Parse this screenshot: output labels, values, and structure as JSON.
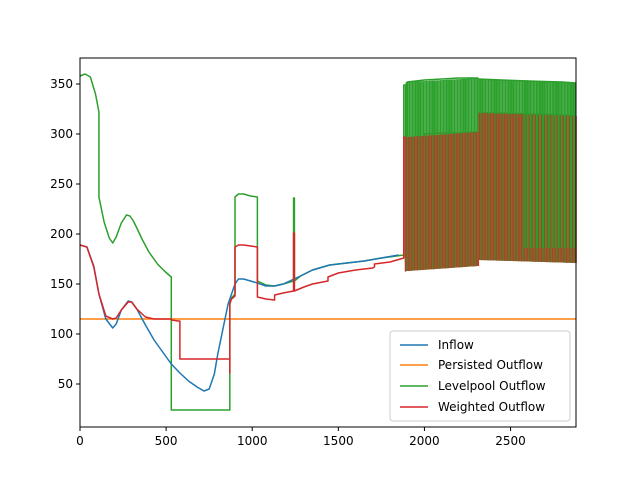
{
  "chart_data": {
    "type": "line",
    "title": "",
    "xlabel": "",
    "ylabel": "",
    "xlim": [
      0,
      2880
    ],
    "ylim": [
      7,
      376
    ],
    "xticks": [
      0,
      500,
      1000,
      1500,
      2000,
      2500
    ],
    "yticks": [
      50,
      100,
      150,
      200,
      250,
      300,
      350
    ],
    "grid": false,
    "legend_position": "lower-right",
    "series": [
      {
        "name": "Inflow",
        "color": "#1f77b4",
        "x": [
          0,
          40,
          80,
          110,
          150,
          190,
          210,
          240,
          280,
          300,
          330,
          380,
          430,
          480,
          530,
          580,
          630,
          680,
          720,
          750,
          780,
          800,
          830,
          860,
          880,
          900,
          920,
          950,
          990,
          1030,
          1080,
          1130,
          1180,
          1230,
          1280,
          1350,
          1450,
          1550,
          1650,
          1750,
          1850
        ],
        "y": [
          189,
          187,
          168,
          140,
          115,
          106,
          110,
          124,
          133,
          132,
          125,
          109,
          94,
          82,
          70,
          61,
          53,
          47,
          43,
          45,
          60,
          80,
          105,
          130,
          140,
          150,
          155,
          155,
          153,
          151,
          148,
          148,
          150,
          154,
          158,
          164,
          169,
          171,
          173,
          176,
          179
        ]
      },
      {
        "name": "Persisted Outflow",
        "color": "#ff7f0e",
        "x": [
          0,
          2880
        ],
        "y": [
          115,
          115
        ]
      },
      {
        "name": "Levelpool Outflow",
        "color": "#2ca02c",
        "x": [
          0,
          30,
          60,
          90,
          110,
          110,
          140,
          170,
          190,
          210,
          240,
          270,
          290,
          310,
          330,
          360,
          400,
          450,
          490,
          530,
          530,
          870,
          870,
          880,
          890,
          900,
          900,
          920,
          950,
          990,
          1030,
          1030,
          1080,
          1130,
          1180,
          1240,
          1240,
          1245,
          1245,
          1280,
          1350,
          1450,
          1550,
          1650,
          1750,
          1880,
          1880,
          1890,
          1890,
          1900,
          2000,
          2100,
          2200,
          2300,
          2310,
          2310,
          2450,
          2600,
          2800,
          2880
        ],
        "y": [
          358,
          360,
          357,
          340,
          322,
          237,
          212,
          196,
          191,
          197,
          211,
          219,
          218,
          213,
          206,
          195,
          182,
          170,
          163,
          157,
          24,
          24,
          130,
          136,
          138,
          140,
          237,
          240,
          240,
          238,
          237,
          153,
          149,
          148,
          150,
          153,
          236,
          236,
          153,
          158,
          164,
          169,
          171,
          173,
          176,
          179,
          349,
          349,
          172,
          352,
          354,
          355,
          356,
          356,
          356,
          355,
          354,
          353,
          352,
          351
        ]
      },
      {
        "name": "Weighted Outflow",
        "color": "#d62728",
        "x": [
          0,
          40,
          80,
          110,
          150,
          190,
          210,
          240,
          280,
          300,
          330,
          380,
          430,
          480,
          530,
          530,
          570,
          580,
          580,
          870,
          870,
          870,
          875,
          880,
          900,
          900,
          920,
          950,
          990,
          1030,
          1030,
          1080,
          1130,
          1130,
          1180,
          1240,
          1240,
          1245,
          1245,
          1300,
          1350,
          1440,
          1440,
          1500,
          1600,
          1700,
          1710,
          1710,
          1800,
          1880,
          1880,
          1890,
          1890,
          2000,
          2100,
          2200,
          2300,
          2310,
          2310,
          2450,
          2600,
          2800,
          2880
        ],
        "y": [
          189,
          187,
          167,
          140,
          118,
          115,
          116,
          124,
          132,
          132,
          125,
          117,
          115,
          115,
          115,
          114,
          113,
          113,
          75,
          75,
          61,
          130,
          133,
          135,
          138,
          187,
          189,
          189,
          188,
          187,
          137,
          135,
          134,
          139,
          141,
          143,
          201,
          201,
          143,
          147,
          150,
          153,
          157,
          161,
          164,
          166,
          167,
          170,
          172,
          176,
          297,
          297,
          163,
          300,
          301,
          301,
          302,
          302,
          321,
          321,
          320,
          319,
          318
        ]
      }
    ]
  }
}
